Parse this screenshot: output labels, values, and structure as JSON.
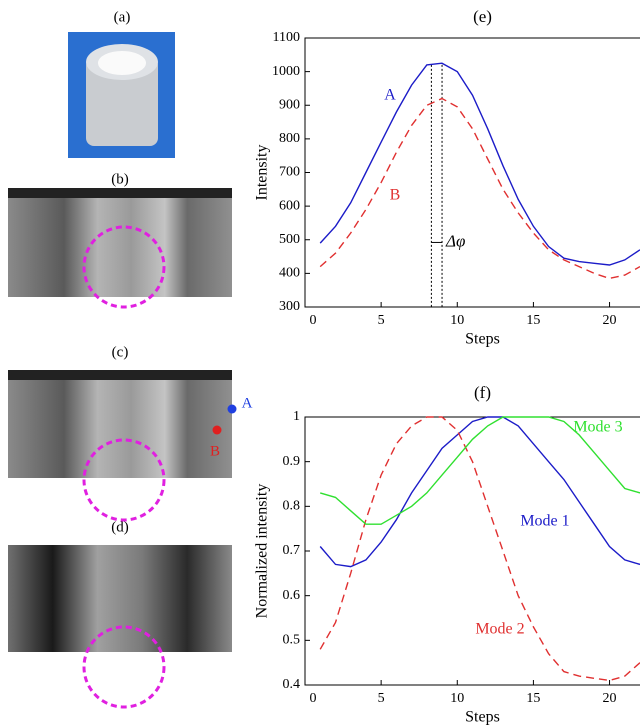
{
  "panels": [
    {
      "label": "(a)"
    },
    {
      "label": "(b)"
    },
    {
      "label": "(c)"
    },
    {
      "label": "(d)"
    }
  ],
  "points": [
    {
      "label": "A",
      "color": "#1f3fe0"
    },
    {
      "label": "B",
      "color": "#e02020"
    }
  ],
  "chart_data": [
    {
      "type": "line",
      "title": "(e)",
      "x_label": "Steps",
      "y_label": "Intensity",
      "x": [
        1,
        2,
        3,
        4,
        5,
        6,
        7,
        8,
        9,
        10,
        11,
        12,
        13,
        14,
        15,
        16,
        17,
        18,
        19,
        20,
        21,
        22
      ],
      "series": [
        {
          "name": "A",
          "color": "#1c1cc8",
          "dash": false,
          "values": [
            490,
            540,
            610,
            700,
            790,
            880,
            960,
            1020,
            1025,
            1000,
            930,
            830,
            720,
            620,
            540,
            480,
            445,
            435,
            430,
            425,
            440,
            470
          ]
        },
        {
          "name": "B",
          "color": "#e03030",
          "dash": true,
          "values": [
            420,
            460,
            520,
            590,
            670,
            760,
            840,
            900,
            920,
            895,
            830,
            740,
            650,
            580,
            520,
            470,
            440,
            420,
            400,
            385,
            395,
            420
          ]
        }
      ],
      "annotation": "Δφ",
      "markers_x": [
        8.3,
        9.0
      ],
      "xlim": [
        0,
        22
      ],
      "xticks": [
        0,
        5,
        10,
        15,
        20
      ],
      "ylim": [
        300,
        1100
      ],
      "yticks": [
        300,
        400,
        500,
        600,
        700,
        800,
        900,
        1000,
        1100
      ]
    },
    {
      "type": "line",
      "title": "(f)",
      "x_label": "Steps",
      "y_label": "Normalized intensity",
      "x": [
        1,
        2,
        3,
        4,
        5,
        6,
        7,
        8,
        9,
        10,
        11,
        12,
        13,
        14,
        15,
        16,
        17,
        18,
        19,
        20,
        21,
        22
      ],
      "series": [
        {
          "name": "Mode 1",
          "color": "#1c1cc8",
          "dash": false,
          "values": [
            0.71,
            0.67,
            0.665,
            0.68,
            0.72,
            0.77,
            0.83,
            0.88,
            0.93,
            0.96,
            0.99,
            1.0,
            1.0,
            0.98,
            0.94,
            0.9,
            0.86,
            0.81,
            0.76,
            0.71,
            0.68,
            0.67
          ]
        },
        {
          "name": "Mode 2",
          "color": "#e03030",
          "dash": true,
          "values": [
            0.48,
            0.54,
            0.65,
            0.77,
            0.87,
            0.94,
            0.98,
            1.0,
            1.0,
            0.97,
            0.9,
            0.8,
            0.7,
            0.6,
            0.53,
            0.47,
            0.43,
            0.42,
            0.415,
            0.41,
            0.42,
            0.45
          ]
        },
        {
          "name": "Mode 3",
          "color": "#30e030",
          "dash": false,
          "values": [
            0.83,
            0.82,
            0.79,
            0.76,
            0.76,
            0.78,
            0.8,
            0.83,
            0.87,
            0.91,
            0.95,
            0.98,
            1.0,
            1.0,
            1.0,
            1.0,
            0.99,
            0.96,
            0.92,
            0.88,
            0.84,
            0.83
          ]
        }
      ],
      "xlim": [
        0,
        22
      ],
      "xticks": [
        0,
        5,
        10,
        15,
        20
      ],
      "ylim": [
        0.4,
        1
      ],
      "yticks": [
        0.4,
        0.5,
        0.6,
        0.7,
        0.8,
        0.9,
        1
      ]
    }
  ]
}
